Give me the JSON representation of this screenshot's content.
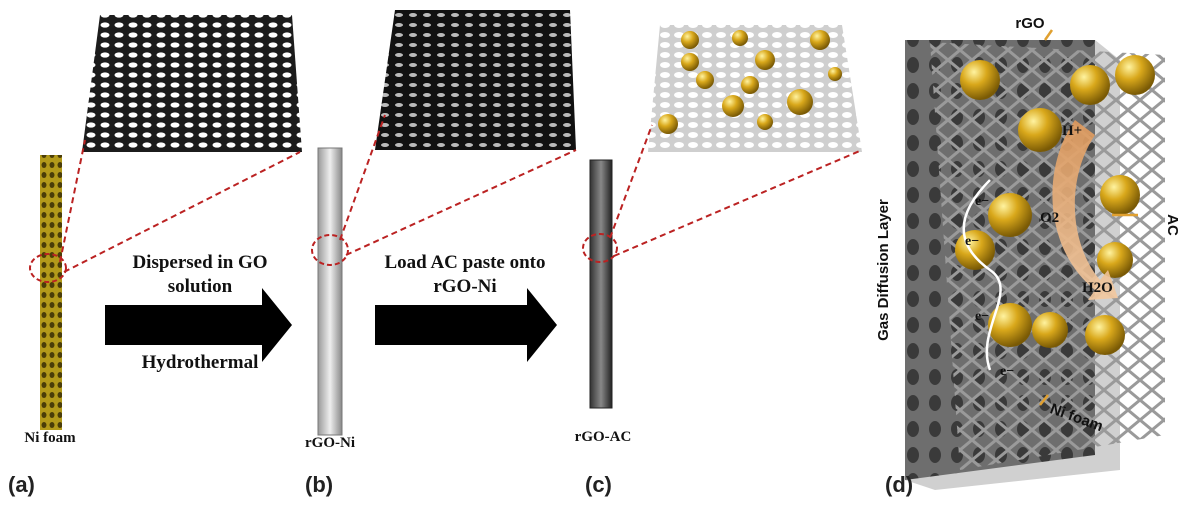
{
  "panels": [
    {
      "label": "(a)",
      "caption": "Ni foam"
    },
    {
      "label": "(b)",
      "caption": "rGO-Ni"
    },
    {
      "label": "(c)",
      "caption": "rGO-AC"
    },
    {
      "label": "(d)"
    }
  ],
  "arrows": [
    {
      "top": [
        "Dispersed in GO",
        "solution"
      ],
      "bottom": "Hydrothermal"
    },
    {
      "top": [
        "Load AC paste onto",
        "rGO-Ni"
      ]
    }
  ],
  "cell": {
    "rgo": "rGO",
    "ac": "AC",
    "ni_foam": "Ni foam",
    "gdl": "Gas Diffusion Layer",
    "proton": "H+",
    "oxygen": "O2",
    "water": "H2O",
    "electrons": [
      "e−",
      "e−",
      "e−",
      "e−"
    ]
  }
}
